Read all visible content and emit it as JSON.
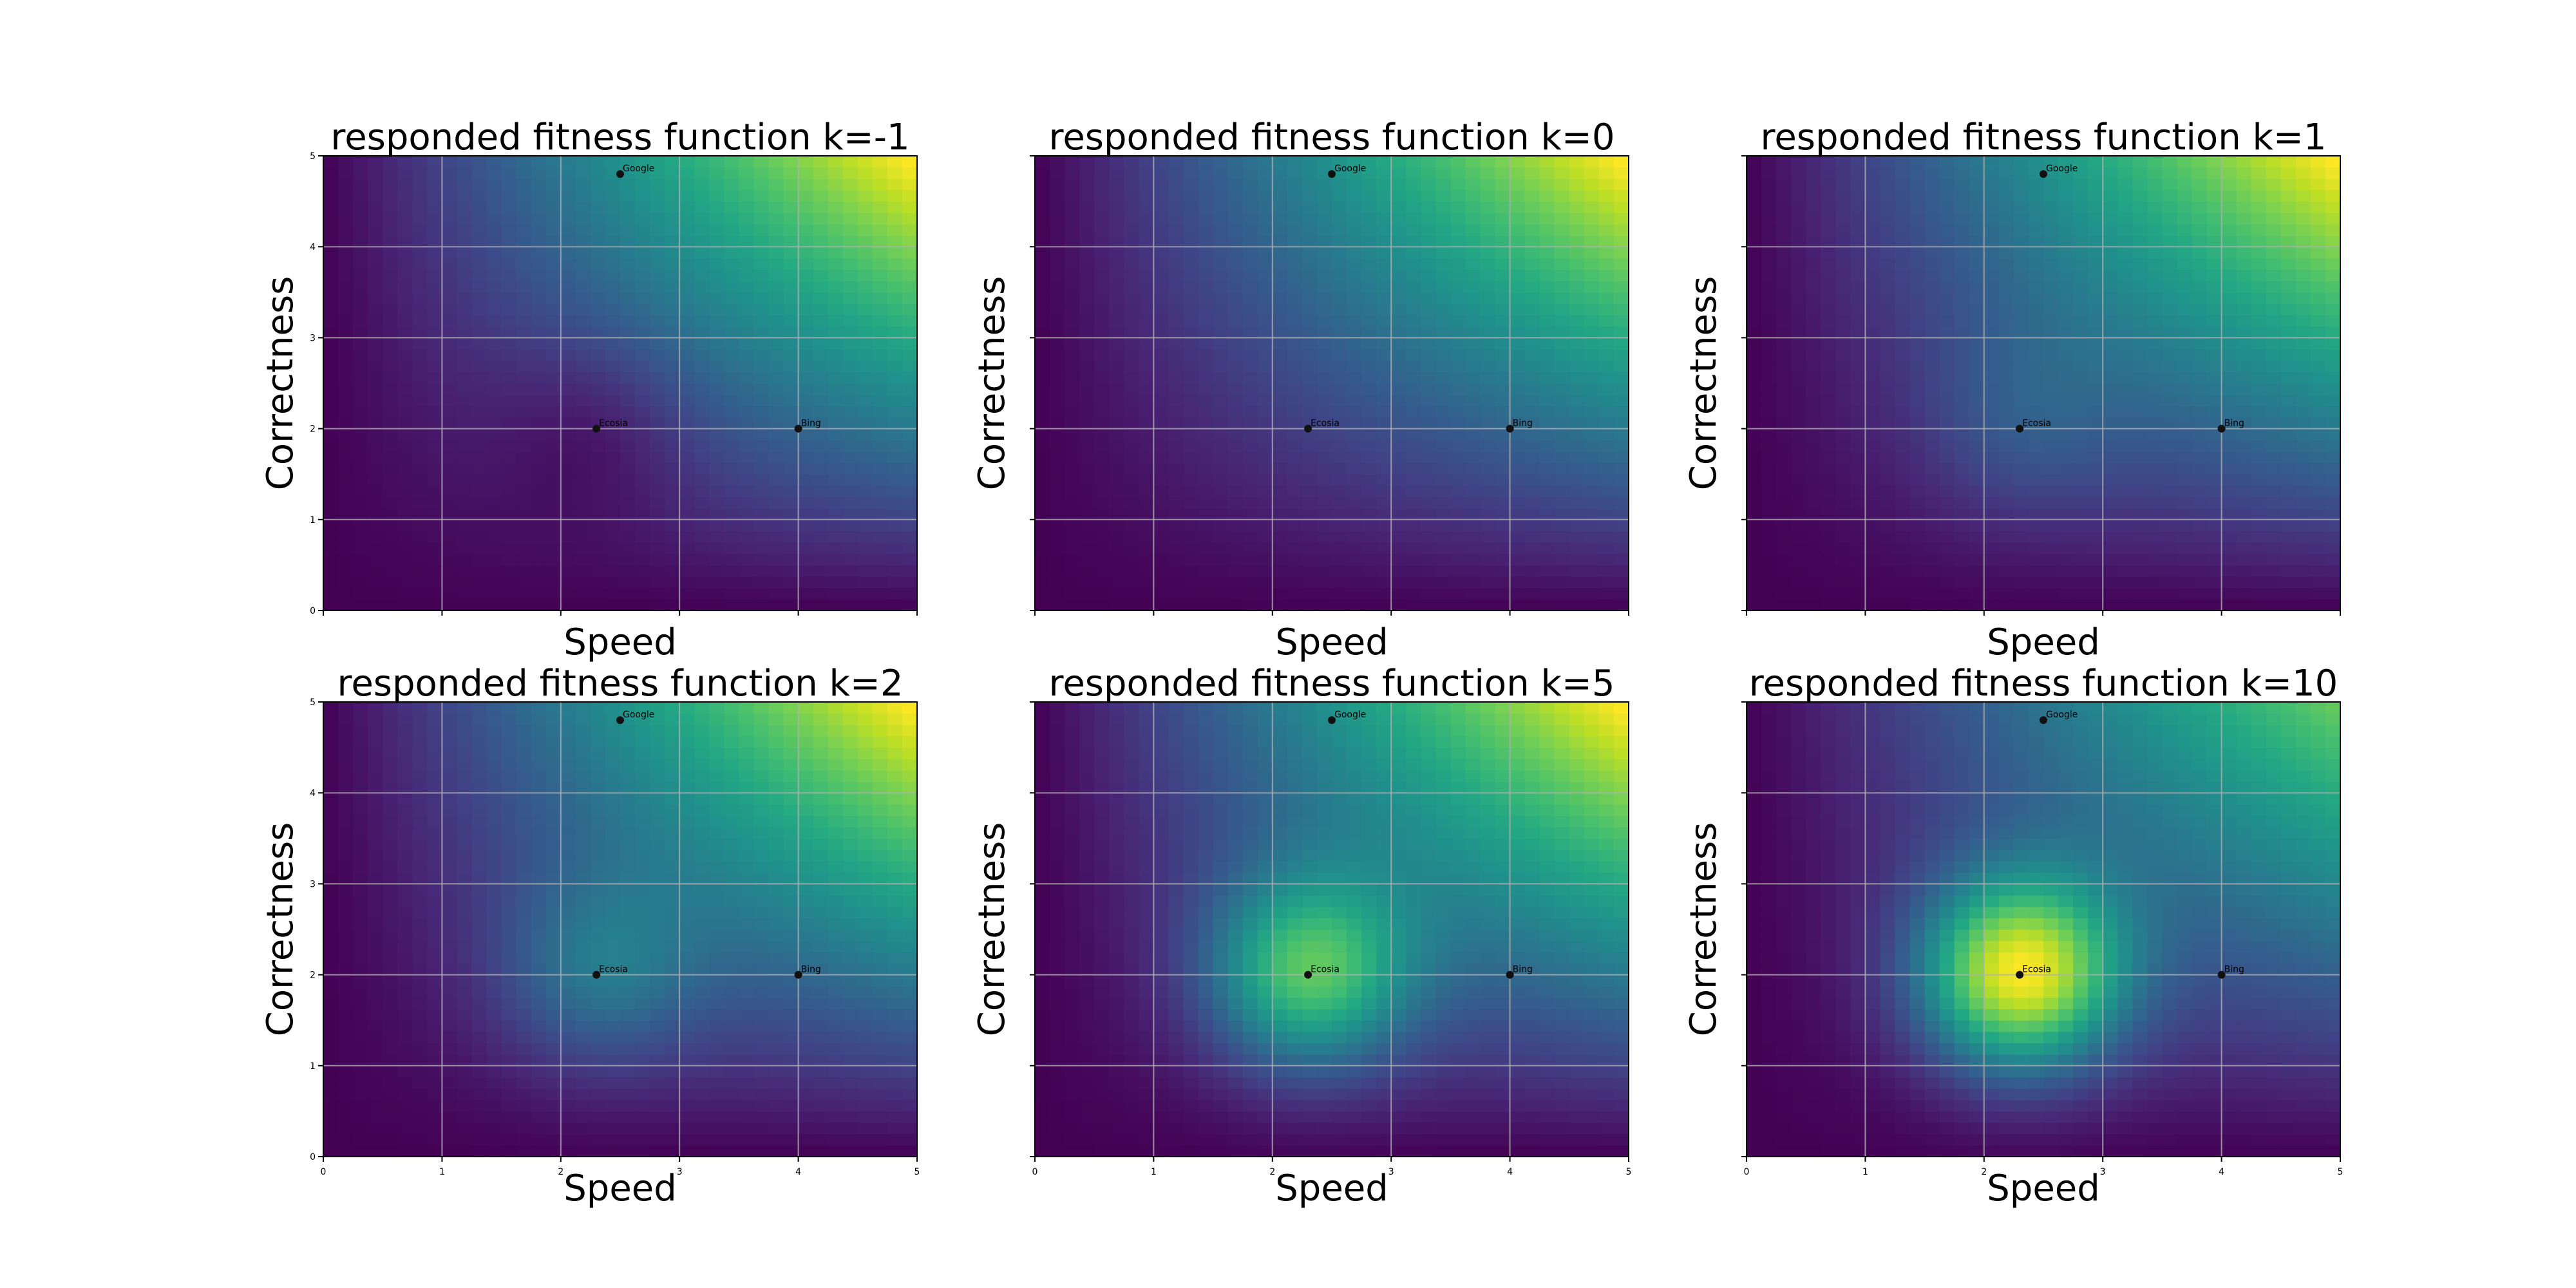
{
  "chart_data": [
    {
      "type": "heatmap",
      "title": "responded fitness function k=-1",
      "k": -1,
      "xlabel": "Speed",
      "ylabel": "Correctness",
      "xlim": [
        0,
        5
      ],
      "ylim": [
        0,
        5
      ],
      "xticks": [
        "0",
        "1",
        "2",
        "3",
        "4",
        "5"
      ],
      "yticks": [
        "0",
        "1",
        "2",
        "3",
        "4",
        "5"
      ],
      "show_xticklabels": false,
      "show_yticklabels": true,
      "grid": true,
      "colormap": "viridis",
      "points": [
        {
          "label": "Google",
          "x": 2.5,
          "y": 4.8
        },
        {
          "label": "Ecosia",
          "x": 2.3,
          "y": 2.0
        },
        {
          "label": "Bing",
          "x": 4.0,
          "y": 2.0
        }
      ]
    },
    {
      "type": "heatmap",
      "title": "responded fitness function k=0",
      "k": 0,
      "xlabel": "Speed",
      "ylabel": "Correctness",
      "xlim": [
        0,
        5
      ],
      "ylim": [
        0,
        5
      ],
      "xticks": [
        "0",
        "1",
        "2",
        "3",
        "4",
        "5"
      ],
      "yticks": [
        "0",
        "1",
        "2",
        "3",
        "4",
        "5"
      ],
      "show_xticklabels": false,
      "show_yticklabels": false,
      "grid": true,
      "colormap": "viridis",
      "points": [
        {
          "label": "Google",
          "x": 2.5,
          "y": 4.8
        },
        {
          "label": "Ecosia",
          "x": 2.3,
          "y": 2.0
        },
        {
          "label": "Bing",
          "x": 4.0,
          "y": 2.0
        }
      ]
    },
    {
      "type": "heatmap",
      "title": "responded fitness function k=1",
      "k": 1,
      "xlabel": "Speed",
      "ylabel": "Correctness",
      "xlim": [
        0,
        5
      ],
      "ylim": [
        0,
        5
      ],
      "xticks": [
        "0",
        "1",
        "2",
        "3",
        "4",
        "5"
      ],
      "yticks": [
        "0",
        "1",
        "2",
        "3",
        "4",
        "5"
      ],
      "show_xticklabels": false,
      "show_yticklabels": false,
      "grid": true,
      "colormap": "viridis",
      "points": [
        {
          "label": "Google",
          "x": 2.5,
          "y": 4.8
        },
        {
          "label": "Ecosia",
          "x": 2.3,
          "y": 2.0
        },
        {
          "label": "Bing",
          "x": 4.0,
          "y": 2.0
        }
      ]
    },
    {
      "type": "heatmap",
      "title": "responded fitness function k=2",
      "k": 2,
      "xlabel": "Speed",
      "ylabel": "Correctness",
      "xlim": [
        0,
        5
      ],
      "ylim": [
        0,
        5
      ],
      "xticks": [
        "0",
        "1",
        "2",
        "3",
        "4",
        "5"
      ],
      "yticks": [
        "0",
        "1",
        "2",
        "3",
        "4",
        "5"
      ],
      "show_xticklabels": true,
      "show_yticklabels": true,
      "grid": true,
      "colormap": "viridis",
      "points": [
        {
          "label": "Google",
          "x": 2.5,
          "y": 4.8
        },
        {
          "label": "Ecosia",
          "x": 2.3,
          "y": 2.0
        },
        {
          "label": "Bing",
          "x": 4.0,
          "y": 2.0
        }
      ]
    },
    {
      "type": "heatmap",
      "title": "responded fitness function k=5",
      "k": 5,
      "xlabel": "Speed",
      "ylabel": "Correctness",
      "xlim": [
        0,
        5
      ],
      "ylim": [
        0,
        5
      ],
      "xticks": [
        "0",
        "1",
        "2",
        "3",
        "4",
        "5"
      ],
      "yticks": [
        "0",
        "1",
        "2",
        "3",
        "4",
        "5"
      ],
      "show_xticklabels": true,
      "show_yticklabels": false,
      "grid": true,
      "colormap": "viridis",
      "points": [
        {
          "label": "Google",
          "x": 2.5,
          "y": 4.8
        },
        {
          "label": "Ecosia",
          "x": 2.3,
          "y": 2.0
        },
        {
          "label": "Bing",
          "x": 4.0,
          "y": 2.0
        }
      ]
    },
    {
      "type": "heatmap",
      "title": "responded fitness function k=10",
      "k": 10,
      "xlabel": "Speed",
      "ylabel": "Correctness",
      "xlim": [
        0,
        5
      ],
      "ylim": [
        0,
        5
      ],
      "xticks": [
        "0",
        "1",
        "2",
        "3",
        "4",
        "5"
      ],
      "yticks": [
        "0",
        "1",
        "2",
        "3",
        "4",
        "5"
      ],
      "show_xticklabels": true,
      "show_yticklabels": false,
      "grid": true,
      "colormap": "viridis",
      "points": [
        {
          "label": "Google",
          "x": 2.5,
          "y": 4.8
        },
        {
          "label": "Ecosia",
          "x": 2.3,
          "y": 2.0
        },
        {
          "label": "Bing",
          "x": 4.0,
          "y": 2.0
        }
      ]
    }
  ]
}
